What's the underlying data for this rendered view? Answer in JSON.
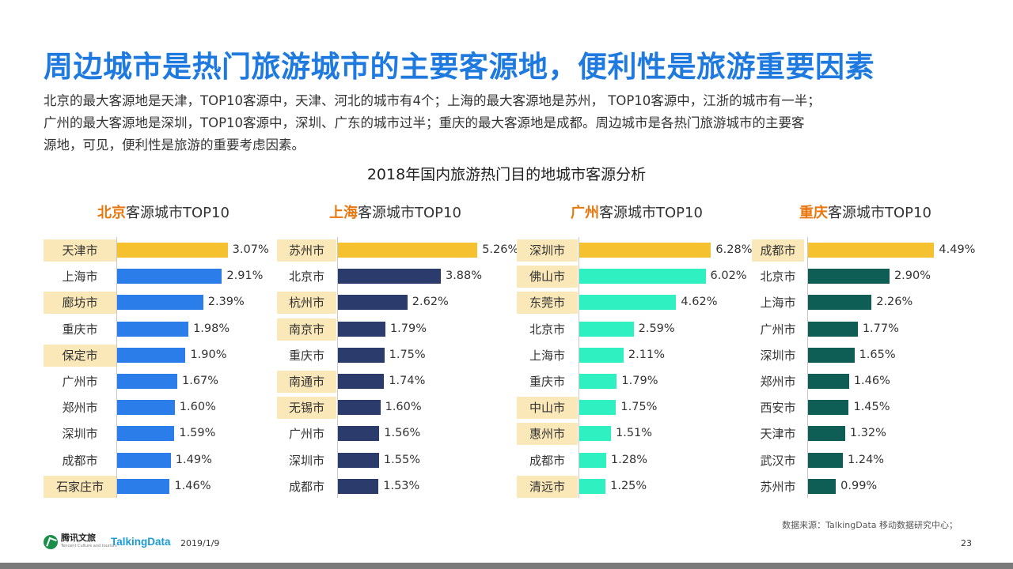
{
  "header": {
    "title": "周边城市是热门旅游城市的主要客源地，便利性是旅游重要因素",
    "description": [
      "北京的最大客源地是天津，TOP10客源中，天津、河北的城市有4个；上海的最大客源地是苏州， TOP10客源中，江浙的城市有一半；",
      "广州的最大客源地是深圳，TOP10客源中，深圳、广东的城市过半；重庆的最大客源地是成都。周边城市是各热门旅游城市的主要客",
      "源地，可见，便利性是旅游的重要考虑因素。"
    ]
  },
  "footer": {
    "source": "数据来源：TalkingData  移动数据研究中心；",
    "logo_tencent": "腾讯文旅",
    "logo_tencent_sub": "Tencent Culture and tourism",
    "logo_talkingdata": "TalkingData",
    "date": "2019/1/9",
    "page": "23"
  },
  "chart_data": {
    "type": "bar",
    "title": "2018年国内旅游热门目的地城市客源分析",
    "unit": "%",
    "panels": [
      {
        "city": "北京",
        "suffix": "客源城市TOP10",
        "color": "#2b7de9",
        "top_color": "#f5c12e",
        "categories": [
          "天津市",
          "上海市",
          "廊坊市",
          "重庆市",
          "保定市",
          "广州市",
          "郑州市",
          "深圳市",
          "成都市",
          "石家庄市"
        ],
        "values": [
          3.07,
          2.91,
          2.39,
          1.98,
          1.9,
          1.67,
          1.6,
          1.59,
          1.49,
          1.46
        ],
        "labels": [
          "3.07%",
          "2.91%",
          "2.39%",
          "1.98%",
          "1.90%",
          "1.67%",
          "1.60%",
          "1.59%",
          "1.49%",
          "1.46%"
        ],
        "highlighted": [
          true,
          false,
          true,
          false,
          true,
          false,
          false,
          false,
          false,
          true
        ]
      },
      {
        "city": "上海",
        "suffix": "客源城市TOP10",
        "color": "#2b3b6b",
        "top_color": "#f5c12e",
        "categories": [
          "苏州市",
          "北京市",
          "杭州市",
          "南京市",
          "重庆市",
          "南通市",
          "无锡市",
          "广州市",
          "深圳市",
          "成都市"
        ],
        "values": [
          5.26,
          3.88,
          2.62,
          1.79,
          1.75,
          1.74,
          1.6,
          1.56,
          1.55,
          1.53
        ],
        "labels": [
          "5.26%",
          "3.88%",
          "2.62%",
          "1.79%",
          "1.75%",
          "1.74%",
          "1.60%",
          "1.56%",
          "1.55%",
          "1.53%"
        ],
        "highlighted": [
          true,
          false,
          true,
          true,
          false,
          true,
          true,
          false,
          false,
          false
        ]
      },
      {
        "city": "广州",
        "suffix": "客源城市TOP10",
        "color": "#2ef0c0",
        "top_color": "#f5c12e",
        "categories": [
          "深圳市",
          "佛山市",
          "东莞市",
          "北京市",
          "上海市",
          "重庆市",
          "中山市",
          "惠州市",
          "成都市",
          "清远市"
        ],
        "values": [
          6.28,
          6.02,
          4.62,
          2.59,
          2.11,
          1.79,
          1.75,
          1.51,
          1.28,
          1.25
        ],
        "labels": [
          "6.28%",
          "6.02%",
          "4.62%",
          "2.59%",
          "2.11%",
          "1.79%",
          "1.75%",
          "1.51%",
          "1.28%",
          "1.25%"
        ],
        "highlighted": [
          true,
          true,
          true,
          false,
          false,
          false,
          true,
          true,
          false,
          true
        ]
      },
      {
        "city": "重庆",
        "suffix": "客源城市TOP10",
        "color": "#0e5e55",
        "top_color": "#f5c12e",
        "categories": [
          "成都市",
          "北京市",
          "上海市",
          "广州市",
          "深圳市",
          "郑州市",
          "西安市",
          "天津市",
          "武汉市",
          "苏州市"
        ],
        "values": [
          4.49,
          2.9,
          2.26,
          1.77,
          1.65,
          1.46,
          1.45,
          1.32,
          1.24,
          0.99
        ],
        "labels": [
          "4.49%",
          "2.90%",
          "2.26%",
          "1.77%",
          "1.65%",
          "1.46%",
          "1.45%",
          "1.32%",
          "1.24%",
          "0.99%"
        ],
        "highlighted": [
          true,
          false,
          false,
          false,
          false,
          false,
          false,
          false,
          false,
          false
        ]
      }
    ]
  }
}
